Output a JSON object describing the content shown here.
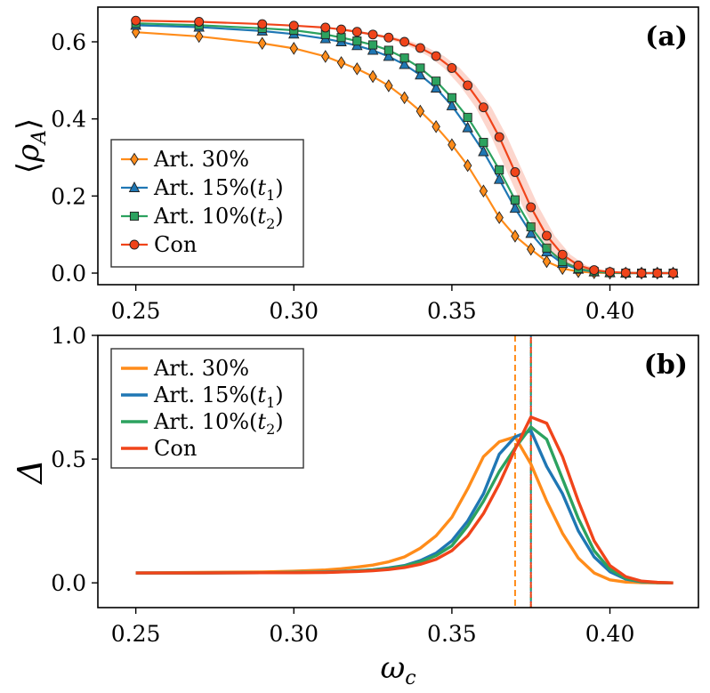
{
  "chart_data": [
    {
      "type": "line",
      "panel_label": "(a)",
      "xlabel": "",
      "ylabel": "⟨ρ_A⟩",
      "ylabel_parts": {
        "main": "ρ",
        "sub": "A"
      },
      "xlim": [
        0.238,
        0.428
      ],
      "ylim": [
        -0.03,
        0.69
      ],
      "xticks": [
        0.25,
        0.3,
        0.35,
        0.4
      ],
      "xtick_labels": [
        "0.25",
        "0.30",
        "0.35",
        "0.40"
      ],
      "yticks": [
        0.0,
        0.2,
        0.4,
        0.6
      ],
      "ytick_labels": [
        "0.0",
        "0.2",
        "0.4",
        "0.6"
      ],
      "legend_position": "lower-left",
      "series": [
        {
          "name": "Art. 30%",
          "label_main": "Art. 30%",
          "label_sub": "",
          "color": "#ff8c1a",
          "marker": "diamond",
          "x": [
            0.25,
            0.27,
            0.29,
            0.3,
            0.31,
            0.315,
            0.32,
            0.325,
            0.33,
            0.335,
            0.34,
            0.345,
            0.35,
            0.355,
            0.36,
            0.365,
            0.37,
            0.375,
            0.38,
            0.385,
            0.39,
            0.395,
            0.4,
            0.405,
            0.41,
            0.415,
            0.42
          ],
          "y": [
            0.625,
            0.614,
            0.596,
            0.583,
            0.562,
            0.546,
            0.53,
            0.51,
            0.486,
            0.455,
            0.42,
            0.38,
            0.333,
            0.279,
            0.213,
            0.144,
            0.096,
            0.062,
            0.03,
            0.012,
            0.004,
            0.001,
            0.0,
            0.0,
            0.0,
            0.0,
            0.0
          ]
        },
        {
          "name": "Art. 15%(t1)",
          "label_main": "Art. 15%(",
          "label_sub_var": "t",
          "label_sub": "1",
          "color": "#1f77b4",
          "marker": "triangle",
          "x": [
            0.25,
            0.27,
            0.29,
            0.3,
            0.31,
            0.315,
            0.32,
            0.325,
            0.33,
            0.335,
            0.34,
            0.345,
            0.35,
            0.355,
            0.36,
            0.365,
            0.37,
            0.375,
            0.38,
            0.385,
            0.39,
            0.395,
            0.4,
            0.405,
            0.41,
            0.415,
            0.42
          ],
          "y": [
            0.643,
            0.638,
            0.628,
            0.62,
            0.608,
            0.6,
            0.59,
            0.578,
            0.562,
            0.541,
            0.514,
            0.48,
            0.434,
            0.377,
            0.315,
            0.243,
            0.168,
            0.103,
            0.055,
            0.025,
            0.01,
            0.003,
            0.001,
            0.0,
            0.0,
            0.0,
            0.0
          ]
        },
        {
          "name": "Art. 10%(t2)",
          "label_main": "Art. 10%(",
          "label_sub_var": "t",
          "label_sub": "2",
          "color": "#2ca25f",
          "marker": "square",
          "x": [
            0.25,
            0.27,
            0.29,
            0.3,
            0.31,
            0.315,
            0.32,
            0.325,
            0.33,
            0.335,
            0.34,
            0.345,
            0.35,
            0.355,
            0.36,
            0.365,
            0.37,
            0.375,
            0.38,
            0.385,
            0.39,
            0.395,
            0.4,
            0.405,
            0.41,
            0.415,
            0.42
          ],
          "y": [
            0.648,
            0.643,
            0.635,
            0.63,
            0.619,
            0.611,
            0.602,
            0.592,
            0.578,
            0.558,
            0.532,
            0.498,
            0.455,
            0.404,
            0.339,
            0.268,
            0.19,
            0.12,
            0.065,
            0.03,
            0.012,
            0.004,
            0.001,
            0.0,
            0.0,
            0.0,
            0.0
          ]
        },
        {
          "name": "Con",
          "label_main": "Con",
          "label_sub": "",
          "color": "#f0441a",
          "marker": "circle",
          "x": [
            0.25,
            0.27,
            0.29,
            0.3,
            0.31,
            0.315,
            0.32,
            0.325,
            0.33,
            0.335,
            0.34,
            0.345,
            0.35,
            0.355,
            0.36,
            0.365,
            0.37,
            0.375,
            0.38,
            0.385,
            0.39,
            0.395,
            0.4,
            0.405,
            0.41,
            0.415,
            0.42
          ],
          "y": [
            0.655,
            0.652,
            0.646,
            0.642,
            0.637,
            0.632,
            0.626,
            0.619,
            0.611,
            0.6,
            0.584,
            0.563,
            0.532,
            0.487,
            0.43,
            0.353,
            0.262,
            0.171,
            0.097,
            0.048,
            0.02,
            0.008,
            0.003,
            0.001,
            0.0,
            0.0,
            0.0
          ]
        }
      ]
    },
    {
      "type": "line",
      "panel_label": "(b)",
      "xlabel": "ω_c",
      "xlabel_parts": {
        "main": "ω",
        "sub": "c"
      },
      "ylabel": "Δ",
      "xlim": [
        0.238,
        0.428
      ],
      "ylim": [
        -0.1,
        1.0
      ],
      "xticks": [
        0.25,
        0.3,
        0.35,
        0.4
      ],
      "xtick_labels": [
        "0.25",
        "0.30",
        "0.35",
        "0.40"
      ],
      "yticks": [
        0.0,
        0.5,
        1.0
      ],
      "ytick_labels": [
        "0.0",
        "0.5",
        "1.0"
      ],
      "legend_position": "top-left",
      "vlines": [
        {
          "x": 0.37,
          "color": "#ff8c1a",
          "style": "dashed"
        },
        {
          "x": 0.375,
          "color": "#1f77b4",
          "style": "dashed"
        },
        {
          "x": 0.375,
          "color": "#2ca25f",
          "style": "dashed"
        },
        {
          "x": 0.375,
          "color": "#f0441a",
          "style": "dashed"
        }
      ],
      "series": [
        {
          "name": "Art. 30%",
          "label_main": "Art. 30%",
          "label_sub": "",
          "color": "#ff8c1a",
          "x": [
            0.25,
            0.27,
            0.29,
            0.3,
            0.31,
            0.315,
            0.32,
            0.325,
            0.33,
            0.335,
            0.34,
            0.345,
            0.35,
            0.355,
            0.36,
            0.365,
            0.37,
            0.375,
            0.38,
            0.385,
            0.39,
            0.395,
            0.4,
            0.405,
            0.41,
            0.415,
            0.42
          ],
          "y": [
            0.04,
            0.042,
            0.044,
            0.047,
            0.052,
            0.057,
            0.064,
            0.072,
            0.085,
            0.105,
            0.14,
            0.19,
            0.265,
            0.38,
            0.51,
            0.57,
            0.59,
            0.48,
            0.33,
            0.2,
            0.1,
            0.04,
            0.012,
            0.003,
            0.001,
            0.0,
            0.0
          ]
        },
        {
          "name": "Art. 15%(t1)",
          "label_main": "Art. 15%(",
          "label_sub_var": "t",
          "label_sub": "1",
          "color": "#1f77b4",
          "x": [
            0.25,
            0.27,
            0.29,
            0.3,
            0.31,
            0.315,
            0.32,
            0.325,
            0.33,
            0.335,
            0.34,
            0.345,
            0.35,
            0.355,
            0.36,
            0.365,
            0.37,
            0.375,
            0.38,
            0.385,
            0.39,
            0.395,
            0.4,
            0.405,
            0.41,
            0.415,
            0.42
          ],
          "y": [
            0.04,
            0.04,
            0.041,
            0.042,
            0.044,
            0.046,
            0.049,
            0.053,
            0.06,
            0.07,
            0.09,
            0.12,
            0.17,
            0.25,
            0.36,
            0.52,
            0.59,
            0.615,
            0.47,
            0.36,
            0.21,
            0.105,
            0.045,
            0.015,
            0.004,
            0.001,
            0.0
          ]
        },
        {
          "name": "Art. 10%(t2)",
          "label_main": "Art. 10%(",
          "label_sub_var": "t",
          "label_sub": "2",
          "color": "#2ca25f",
          "x": [
            0.25,
            0.27,
            0.29,
            0.3,
            0.31,
            0.315,
            0.32,
            0.325,
            0.33,
            0.335,
            0.34,
            0.345,
            0.35,
            0.355,
            0.36,
            0.365,
            0.37,
            0.375,
            0.38,
            0.385,
            0.39,
            0.395,
            0.4,
            0.405,
            0.41,
            0.415,
            0.42
          ],
          "y": [
            0.04,
            0.04,
            0.041,
            0.042,
            0.043,
            0.045,
            0.048,
            0.052,
            0.058,
            0.068,
            0.085,
            0.11,
            0.15,
            0.23,
            0.33,
            0.45,
            0.545,
            0.63,
            0.58,
            0.42,
            0.26,
            0.13,
            0.055,
            0.018,
            0.005,
            0.001,
            0.0
          ]
        },
        {
          "name": "Con",
          "label_main": "Con",
          "label_sub": "",
          "color": "#f0441a",
          "x": [
            0.25,
            0.27,
            0.29,
            0.3,
            0.31,
            0.315,
            0.32,
            0.325,
            0.33,
            0.335,
            0.34,
            0.345,
            0.35,
            0.355,
            0.36,
            0.365,
            0.37,
            0.375,
            0.38,
            0.385,
            0.39,
            0.395,
            0.4,
            0.405,
            0.41,
            0.415,
            0.42
          ],
          "y": [
            0.04,
            0.04,
            0.041,
            0.041,
            0.042,
            0.044,
            0.046,
            0.049,
            0.054,
            0.062,
            0.075,
            0.095,
            0.13,
            0.19,
            0.28,
            0.4,
            0.54,
            0.67,
            0.645,
            0.51,
            0.33,
            0.17,
            0.07,
            0.025,
            0.007,
            0.002,
            0.0
          ]
        }
      ]
    }
  ]
}
